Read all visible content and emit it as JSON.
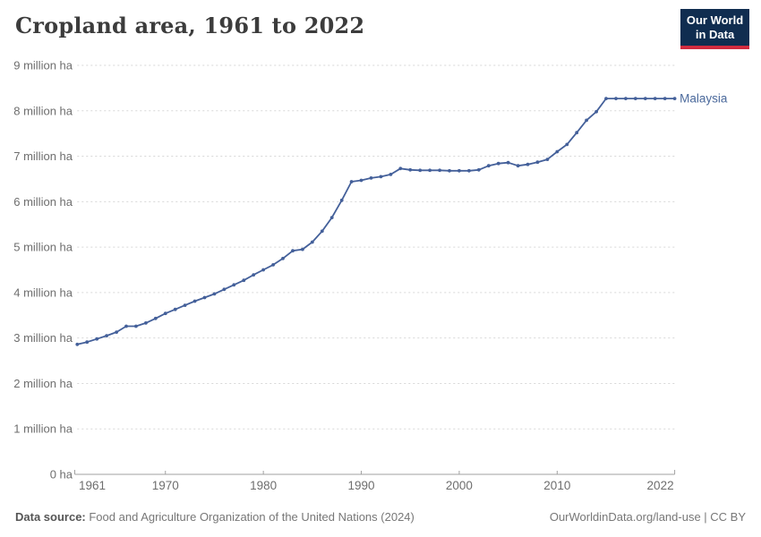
{
  "header": {
    "title": "Cropland area, 1961 to 2022",
    "logo": {
      "line1": "Our World",
      "line2": "in Data"
    }
  },
  "footer": {
    "datasource_label": "Data source:",
    "datasource_text": " Food and Agriculture Organization of the United Nations (2024)",
    "watermark": "OurWorldinData.org/land-use | CC BY"
  },
  "colors": {
    "series_blue": "#44609a",
    "entity_label_blue": "#4c6a9c",
    "gridline": "#d7d7d7",
    "axis_line": "#a1a1a1",
    "tick_text": "#6e6e6e",
    "logo_navy": "#102d50",
    "logo_red": "#d12b3f",
    "title_text": "#3c3c3c"
  },
  "chart_data": {
    "type": "line",
    "title": "Cropland area, 1961 to 2022",
    "unit": "million ha",
    "grid": "horizontal dashed",
    "legend_position": "end-of-line label",
    "xlim": [
      1961,
      2022
    ],
    "ylim": [
      0,
      9
    ],
    "ytick_values": [
      0,
      1,
      2,
      3,
      4,
      5,
      6,
      7,
      8,
      9
    ],
    "ytick_labels": [
      "0 ha",
      "1 million ha",
      "2 million ha",
      "3 million ha",
      "4 million ha",
      "5 million ha",
      "6 million ha",
      "7 million ha",
      "8 million ha",
      "9 million ha"
    ],
    "xtick_values": [
      1961,
      1970,
      1980,
      1990,
      2000,
      2010,
      2022
    ],
    "xtick_labels": [
      "1961",
      "1970",
      "1980",
      "1990",
      "2000",
      "2010",
      "2022"
    ],
    "x": [
      1961,
      1962,
      1963,
      1964,
      1965,
      1966,
      1967,
      1968,
      1969,
      1970,
      1971,
      1972,
      1973,
      1974,
      1975,
      1976,
      1977,
      1978,
      1979,
      1980,
      1981,
      1982,
      1983,
      1984,
      1985,
      1986,
      1987,
      1988,
      1989,
      1990,
      1991,
      1992,
      1993,
      1994,
      1995,
      1996,
      1997,
      1998,
      1999,
      2000,
      2001,
      2002,
      2003,
      2004,
      2005,
      2006,
      2007,
      2008,
      2009,
      2010,
      2011,
      2012,
      2013,
      2014,
      2015,
      2016,
      2017,
      2018,
      2019,
      2020,
      2021,
      2022
    ],
    "series": [
      {
        "name": "Malaysia",
        "color": "#44609a",
        "values": [
          2.86,
          2.91,
          2.98,
          3.05,
          3.13,
          3.26,
          3.26,
          3.33,
          3.43,
          3.54,
          3.63,
          3.72,
          3.81,
          3.89,
          3.97,
          4.07,
          4.17,
          4.27,
          4.39,
          4.5,
          4.61,
          4.75,
          4.92,
          4.95,
          5.11,
          5.35,
          5.65,
          6.03,
          6.44,
          6.47,
          6.52,
          6.55,
          6.6,
          6.73,
          6.7,
          6.69,
          6.69,
          6.69,
          6.68,
          6.68,
          6.68,
          6.7,
          6.79,
          6.84,
          6.86,
          6.79,
          6.82,
          6.87,
          6.93,
          7.1,
          7.26,
          7.52,
          7.79,
          7.98,
          8.27,
          8.27,
          8.27,
          8.27,
          8.27,
          8.27,
          8.27,
          8.27
        ]
      }
    ]
  }
}
